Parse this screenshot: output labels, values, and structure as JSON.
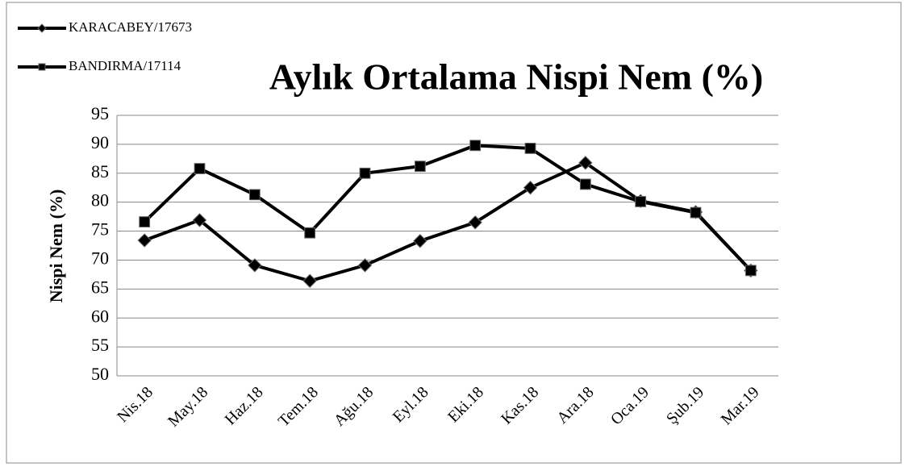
{
  "chart_data": {
    "type": "line",
    "title": "Aylık Ortalama Nispi Nem (%)",
    "y_label": "Nispi Nem (%)",
    "categories": [
      "Nis.18",
      "May.18",
      "Haz.18",
      "Tem.18",
      "Ağu.18",
      "Eyl.18",
      "Eki.18",
      "Kas.18",
      "Ara.18",
      "Oca.19",
      "Şub.19",
      "Mar.19"
    ],
    "series": [
      {
        "name": "KARACABEY/17673",
        "color": "#000000",
        "marker": "diamond",
        "values": [
          73.4,
          76.9,
          69.1,
          66.4,
          69.1,
          73.3,
          76.5,
          82.5,
          86.8,
          80.2,
          78.3,
          68.2
        ]
      },
      {
        "name": "BANDIRMA/17114",
        "color": "#000000",
        "marker": "square",
        "values": [
          76.6,
          85.8,
          81.3,
          74.7,
          85.0,
          86.2,
          89.8,
          89.3,
          83.1,
          80.1,
          78.2,
          68.2
        ]
      }
    ],
    "ylim": [
      50,
      95
    ],
    "yticks": [
      50,
      55,
      60,
      65,
      70,
      75,
      80,
      85,
      90,
      95
    ],
    "grid": true
  }
}
